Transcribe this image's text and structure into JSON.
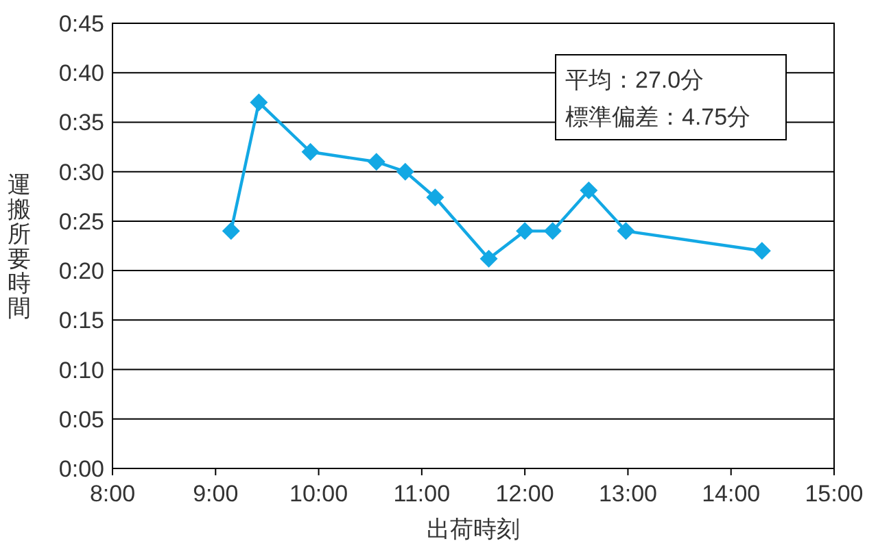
{
  "chart_data": {
    "type": "line",
    "xlabel": "出荷時刻",
    "ylabel": "運搬所要時間",
    "annotations": [
      "平均：27.0分",
      "標準偏差：4.75分"
    ],
    "x": [
      9.15,
      9.42,
      9.92,
      10.56,
      10.84,
      11.13,
      11.65,
      12.0,
      12.27,
      12.62,
      12.98,
      14.3
    ],
    "series": [
      {
        "color": "#13a8e4",
        "values": [
          24,
          37,
          32,
          31,
          30,
          27.4,
          21.2,
          24,
          24,
          28.1,
          24,
          22
        ]
      }
    ],
    "xlim": [
      8,
      15
    ],
    "xticks": [
      {
        "value": 8,
        "label": "8:00"
      },
      {
        "value": 9,
        "label": "9:00"
      },
      {
        "value": 10,
        "label": "10:00"
      },
      {
        "value": 11,
        "label": "11:00"
      },
      {
        "value": 12,
        "label": "12:00"
      },
      {
        "value": 13,
        "label": "13:00"
      },
      {
        "value": 14,
        "label": "14:00"
      },
      {
        "value": 15,
        "label": "15:00"
      }
    ],
    "ylim": [
      0,
      45
    ],
    "yticks": [
      {
        "value": 0,
        "label": "0:00"
      },
      {
        "value": 5,
        "label": "0:05"
      },
      {
        "value": 10,
        "label": "0:10"
      },
      {
        "value": 15,
        "label": "0:15"
      },
      {
        "value": 20,
        "label": "0:20"
      },
      {
        "value": 25,
        "label": "0:25"
      },
      {
        "value": 30,
        "label": "0:30"
      },
      {
        "value": 35,
        "label": "0:35"
      },
      {
        "value": 40,
        "label": "0:40"
      },
      {
        "value": 45,
        "label": "0:45"
      }
    ],
    "grid": "y",
    "marker": "diamond",
    "line_style": "solid"
  }
}
